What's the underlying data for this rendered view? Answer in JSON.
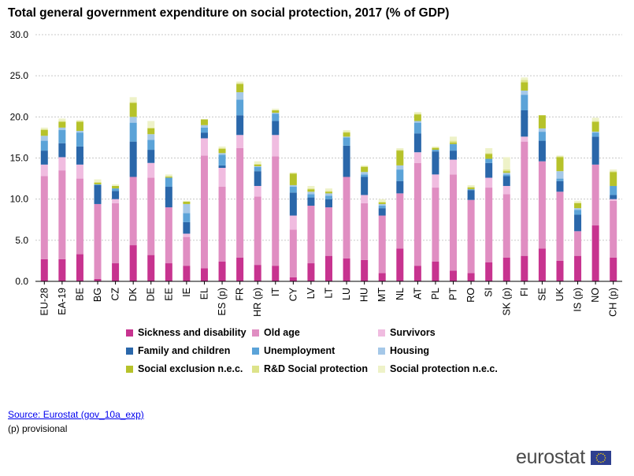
{
  "title": "Total general government expenditure on social protection, 2017 (% of GDP)",
  "source_text": "Source: Eurostat (gov_10a_exp)",
  "note_text": "(p) provisional",
  "logo_text": "eurostat",
  "colors": {
    "sickness": "#c7338f",
    "old_age": "#e08ec2",
    "survivors": "#f0bce0",
    "family": "#2a67aa",
    "unemployment": "#5ba3d8",
    "housing": "#a5c8e8",
    "exclusion": "#b6c22a",
    "rnd": "#dde38a",
    "spnec": "#eef2c8",
    "logo_blue": "#2e3f8f",
    "logo_star": "#ffd700"
  },
  "chart_data": {
    "type": "bar",
    "stacked": true,
    "ylim": [
      0,
      30
    ],
    "yticks": [
      "0.0",
      "5.0",
      "10.0",
      "15.0",
      "20.0",
      "25.0",
      "30.0"
    ],
    "grid": true,
    "legend_position": "bottom",
    "categories": [
      "EU-28",
      "EA-19",
      "BE",
      "BG",
      "CZ",
      "DK",
      "DE",
      "EE",
      "IE",
      "EL",
      "ES (p)",
      "FR",
      "HR (p)",
      "IT",
      "CY",
      "LV",
      "LT",
      "LU",
      "HU",
      "MT",
      "NL",
      "AT",
      "PL",
      "PT",
      "RO",
      "SI",
      "SK (p)",
      "FI",
      "SE",
      "UK",
      "IS (p)",
      "NO",
      "CH (p)"
    ],
    "series": [
      {
        "name": "Sickness and disability",
        "key": "sickness",
        "values": [
          2.7,
          2.7,
          3.3,
          0.3,
          2.2,
          4.4,
          3.2,
          2.2,
          1.9,
          1.6,
          2.4,
          2.9,
          2.0,
          1.9,
          0.5,
          2.2,
          3.1,
          2.8,
          2.6,
          1.0,
          4.0,
          1.9,
          2.4,
          1.3,
          1.0,
          2.3,
          2.9,
          3.1,
          4.0,
          2.5,
          3.1,
          6.8,
          2.9
        ]
      },
      {
        "name": "Old age",
        "key": "old_age",
        "values": [
          10.1,
          10.8,
          9.2,
          9.1,
          7.3,
          8.3,
          9.4,
          6.8,
          3.5,
          13.7,
          9.1,
          13.3,
          8.3,
          13.3,
          5.8,
          7.0,
          5.9,
          9.9,
          6.9,
          7.0,
          6.7,
          12.5,
          9.0,
          11.7,
          8.9,
          9.1,
          7.7,
          13.9,
          10.6,
          8.4,
          3.0,
          7.4,
          6.9
        ]
      },
      {
        "name": "Survivors",
        "key": "survivors",
        "values": [
          1.4,
          1.6,
          1.7,
          0.0,
          0.5,
          0.0,
          1.8,
          0.0,
          0.4,
          2.1,
          2.3,
          1.6,
          1.3,
          2.6,
          1.7,
          0.0,
          0.0,
          0.0,
          1.0,
          0.0,
          0.0,
          1.3,
          1.6,
          1.8,
          0.0,
          1.2,
          1.0,
          0.6,
          0.0,
          0.0,
          0.0,
          0.0,
          0.2
        ]
      },
      {
        "name": "Family and children",
        "key": "family",
        "values": [
          1.7,
          1.7,
          2.2,
          2.3,
          1.0,
          4.3,
          1.6,
          2.5,
          1.4,
          0.7,
          0.3,
          2.4,
          1.8,
          1.7,
          2.8,
          1.0,
          1.0,
          3.8,
          2.2,
          0.9,
          1.5,
          2.3,
          2.8,
          1.1,
          1.2,
          1.8,
          1.2,
          3.2,
          2.5,
          1.3,
          2.0,
          3.4,
          0.5
        ]
      },
      {
        "name": "Unemployment",
        "key": "unemployment",
        "values": [
          1.2,
          1.6,
          1.7,
          0.1,
          0.3,
          2.3,
          1.2,
          1.1,
          1.1,
          0.6,
          1.3,
          1.9,
          0.5,
          0.9,
          0.7,
          0.4,
          0.4,
          1.0,
          0.3,
          0.3,
          1.4,
          1.3,
          0.2,
          0.8,
          0.1,
          0.5,
          0.2,
          1.9,
          1.1,
          0.3,
          0.6,
          0.5,
          1.1
        ]
      },
      {
        "name": "Housing",
        "key": "housing",
        "values": [
          0.6,
          0.3,
          0.2,
          0.0,
          0.0,
          0.7,
          0.7,
          0.0,
          1.1,
          0.3,
          0.2,
          0.9,
          0.1,
          0.1,
          0.2,
          0.3,
          0.3,
          0.1,
          0.3,
          0.2,
          0.5,
          0.2,
          0.0,
          0.0,
          0.0,
          0.0,
          0.2,
          0.5,
          0.4,
          0.9,
          0.2,
          0.1,
          0.0
        ]
      },
      {
        "name": "Social exclusion n.e.c.",
        "key": "exclusion",
        "values": [
          0.7,
          0.7,
          1.1,
          0.2,
          0.3,
          1.7,
          0.7,
          0.1,
          0.3,
          0.7,
          0.5,
          1.0,
          0.2,
          0.3,
          1.4,
          0.3,
          0.2,
          0.5,
          0.6,
          0.2,
          1.8,
          0.8,
          0.2,
          0.2,
          0.2,
          0.6,
          0.2,
          1.0,
          1.6,
          1.7,
          0.6,
          1.2,
          1.7
        ]
      },
      {
        "name": "R&D Social protection",
        "key": "rnd",
        "values": [
          0.1,
          0.1,
          0.1,
          0.1,
          0.0,
          0.1,
          0.1,
          0.1,
          0.0,
          0.0,
          0.1,
          0.1,
          0.1,
          0.0,
          0.1,
          0.1,
          0.1,
          0.1,
          0.1,
          0.1,
          0.1,
          0.1,
          0.1,
          0.2,
          0.1,
          0.1,
          0.2,
          0.3,
          0.0,
          0.1,
          0.1,
          0.1,
          0.1
        ]
      },
      {
        "name": "Social protection n.e.c.",
        "key": "spnec",
        "values": [
          0.2,
          0.3,
          0.1,
          0.3,
          0.2,
          0.6,
          0.8,
          0.2,
          0.1,
          0.0,
          0.2,
          0.2,
          0.3,
          0.2,
          0.0,
          0.3,
          0.3,
          0.2,
          0.1,
          0.3,
          0.2,
          0.2,
          0.1,
          0.5,
          0.2,
          0.6,
          1.5,
          0.3,
          0.0,
          0.1,
          0.2,
          0.4,
          0.2
        ]
      }
    ]
  }
}
